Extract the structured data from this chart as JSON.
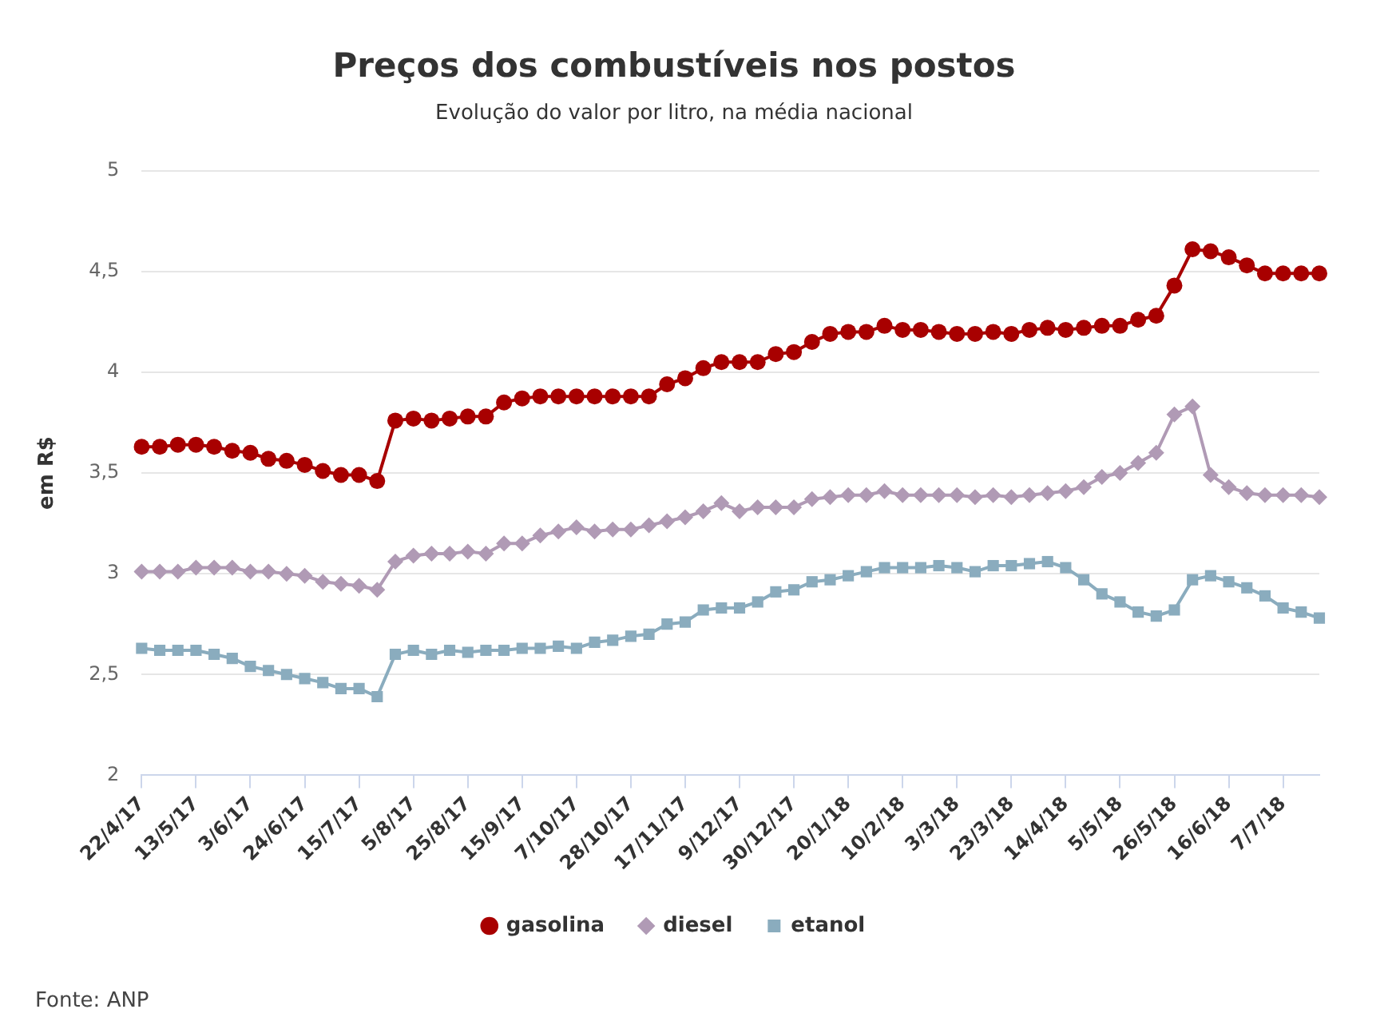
{
  "chart_data": {
    "type": "line",
    "title": "Preços dos combustíveis nos postos",
    "subtitle": "Evolução do valor por litro, na média nacional",
    "ylabel": "em R$",
    "annotations": [
      "Fonte: ANP"
    ],
    "categories": [
      "22/4/17",
      null,
      null,
      "13/5/17",
      null,
      null,
      "3/6/17",
      null,
      null,
      "24/6/17",
      null,
      null,
      "15/7/17",
      null,
      null,
      "5/8/17",
      null,
      null,
      "25/8/17",
      null,
      null,
      "15/9/17",
      null,
      null,
      "7/10/17",
      null,
      null,
      "28/10/17",
      null,
      null,
      "17/11/17",
      null,
      null,
      "9/12/17",
      null,
      null,
      "30/12/17",
      null,
      null,
      "20/1/18",
      null,
      null,
      "10/2/18",
      null,
      null,
      "3/3/18",
      null,
      null,
      "23/3/18",
      null,
      null,
      "14/4/18",
      null,
      null,
      "5/5/18",
      null,
      null,
      "26/5/18",
      null,
      null,
      "16/6/18",
      null,
      null,
      "7/7/18",
      null,
      null
    ],
    "series": [
      {
        "name": "gasolina",
        "color": "#a80000",
        "marker": "circle",
        "values": [
          3.63,
          3.63,
          3.64,
          3.64,
          3.63,
          3.61,
          3.6,
          3.57,
          3.56,
          3.54,
          3.51,
          3.49,
          3.49,
          3.46,
          3.76,
          3.77,
          3.76,
          3.77,
          3.78,
          3.78,
          3.85,
          3.87,
          3.88,
          3.88,
          3.88,
          3.88,
          3.88,
          3.88,
          3.88,
          3.94,
          3.97,
          4.02,
          4.05,
          4.05,
          4.05,
          4.09,
          4.1,
          4.15,
          4.19,
          4.2,
          4.2,
          4.23,
          4.21,
          4.21,
          4.2,
          4.19,
          4.19,
          4.2,
          4.19,
          4.21,
          4.22,
          4.21,
          4.22,
          4.23,
          4.23,
          4.26,
          4.28,
          4.43,
          4.61,
          4.6,
          4.57,
          4.53,
          4.49,
          4.49,
          4.49,
          4.49
        ]
      },
      {
        "name": "diesel",
        "color": "#b09ab5",
        "marker": "diamond",
        "values": [
          3.01,
          3.01,
          3.01,
          3.03,
          3.03,
          3.03,
          3.01,
          3.01,
          3.0,
          2.99,
          2.96,
          2.95,
          2.94,
          2.92,
          3.06,
          3.09,
          3.1,
          3.1,
          3.11,
          3.1,
          3.15,
          3.15,
          3.19,
          3.21,
          3.23,
          3.21,
          3.22,
          3.22,
          3.24,
          3.26,
          3.28,
          3.31,
          3.35,
          3.31,
          3.33,
          3.33,
          3.33,
          3.37,
          3.38,
          3.39,
          3.39,
          3.41,
          3.39,
          3.39,
          3.39,
          3.39,
          3.38,
          3.39,
          3.38,
          3.39,
          3.4,
          3.41,
          3.43,
          3.48,
          3.5,
          3.55,
          3.6,
          3.79,
          3.83,
          3.49,
          3.43,
          3.4,
          3.39,
          3.39,
          3.39,
          3.38
        ]
      },
      {
        "name": "etanol",
        "color": "#8aacbe",
        "marker": "square",
        "values": [
          2.63,
          2.62,
          2.62,
          2.62,
          2.6,
          2.58,
          2.54,
          2.52,
          2.5,
          2.48,
          2.46,
          2.43,
          2.43,
          2.39,
          2.6,
          2.62,
          2.6,
          2.62,
          2.61,
          2.62,
          2.62,
          2.63,
          2.63,
          2.64,
          2.63,
          2.66,
          2.67,
          2.69,
          2.7,
          2.75,
          2.76,
          2.82,
          2.83,
          2.83,
          2.86,
          2.91,
          2.92,
          2.96,
          2.97,
          2.99,
          3.01,
          3.03,
          3.03,
          3.03,
          3.04,
          3.03,
          3.01,
          3.04,
          3.04,
          3.05,
          3.06,
          3.03,
          2.97,
          2.9,
          2.86,
          2.81,
          2.79,
          2.82,
          2.97,
          2.99,
          2.96,
          2.93,
          2.89,
          2.83,
          2.81,
          2.78
        ]
      }
    ],
    "ylim": [
      2,
      5
    ],
    "yticks": [
      2,
      {
        "value": 2.5,
        "label": "2,5"
      },
      3,
      {
        "value": 3.5,
        "label": "3,5"
      },
      4,
      {
        "value": 4.5,
        "label": "4,5"
      },
      5
    ],
    "grid": "y",
    "legend": "bottom",
    "line_style": "solid"
  }
}
